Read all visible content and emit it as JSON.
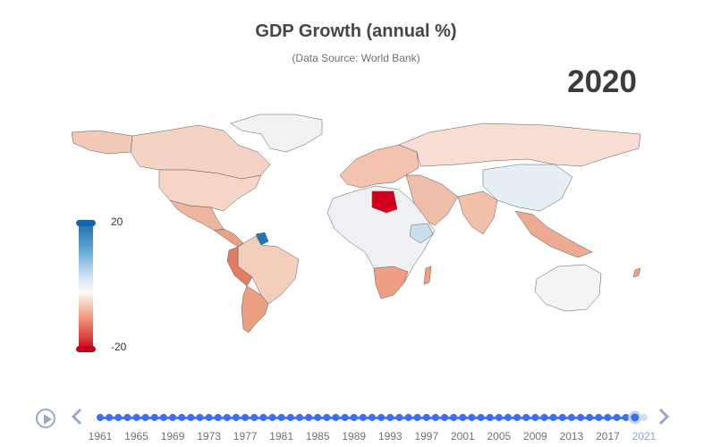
{
  "title": "GDP Growth (annual %)",
  "subtitle": "(Data Source: World Bank)",
  "current_year": "2020",
  "legend": {
    "max_label": "20",
    "min_label": "-20",
    "max": 20,
    "min": -20,
    "colors": {
      "high": "#1565a8",
      "mid": "#fbf5f2",
      "low": "#c8001e"
    }
  },
  "timeline": {
    "tick_labels": [
      "1961",
      "1965",
      "1969",
      "1973",
      "1977",
      "1981",
      "1985",
      "1989",
      "1993",
      "1997",
      "2001",
      "2005",
      "2009",
      "2013",
      "2017",
      "2021"
    ],
    "first_year": 1961,
    "last_year": 2021,
    "selected_year": 2020,
    "colors": {
      "track": "#4e7ce6",
      "dot": "#3f6fe6",
      "control": "#9aa8cc"
    }
  },
  "map_colors": {
    "north_america": "#f2c8b6",
    "greenland": "#f2f2f4",
    "canada": "#f5d3c4",
    "usa": "#f6d5c7",
    "mexico": "#f0b59e",
    "central_america": "#eca083",
    "south_america": "#f5cdbd",
    "peru_ecuador": "#e17d63",
    "argentina": "#eba085",
    "europe": "#f3c3b0",
    "russia": "#f8ddd2",
    "china": "#e6eff6",
    "india": "#f2c0a9",
    "africa": "#eef0f3",
    "libya": "#d2001f",
    "southern_africa": "#ee9f84",
    "australia": "#f4f4f5",
    "middle_east": "#efbea9",
    "ethiopia": "#c8dff0",
    "guyana": "#1f75b7",
    "southeast_asia": "#ecaa92"
  }
}
